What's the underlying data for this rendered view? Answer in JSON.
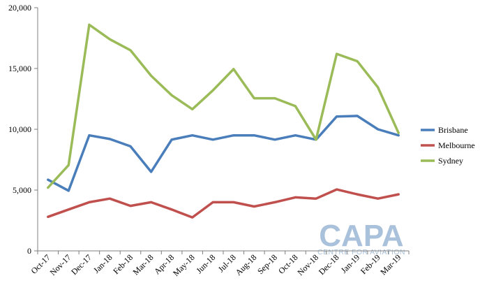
{
  "chart_data": {
    "type": "line",
    "title": "",
    "xlabel": "",
    "ylabel": "",
    "categories": [
      "Oct-17",
      "Nov-17",
      "Dec-17",
      "Jan-18",
      "Feb-18",
      "Mar-18",
      "Apr-18",
      "May-18",
      "Jun-18",
      "Jul-18",
      "Aug-18",
      "Sep-18",
      "Oct-18",
      "Nov-18",
      "Dec-18",
      "Jan-19",
      "Feb-19",
      "Mar-19"
    ],
    "ylim": [
      0,
      20000
    ],
    "yticks": [
      0,
      5000,
      10000,
      15000,
      20000
    ],
    "ytick_labels": [
      "0",
      "5,000",
      "10,000",
      "15,000",
      "20,000"
    ],
    "grid": false,
    "legend_position": "right",
    "series": [
      {
        "name": "Brisbane",
        "color": "#4a7ebb",
        "values": [
          5850,
          4950,
          9500,
          9200,
          8600,
          6500,
          9150,
          9500,
          9150,
          9500,
          9500,
          9150,
          9500,
          9150,
          11050,
          11100,
          10000,
          9500
        ]
      },
      {
        "name": "Melbourne",
        "color": "#c0504d",
        "values": [
          2800,
          3400,
          4000,
          4300,
          3700,
          4000,
          3400,
          2750,
          4000,
          4000,
          3650,
          4000,
          4400,
          4300,
          5050,
          4650,
          4300,
          4650
        ]
      },
      {
        "name": "Sydney",
        "color": "#9bbb59",
        "values": [
          5200,
          7050,
          18600,
          17400,
          16500,
          14400,
          12800,
          11650,
          13200,
          14950,
          12550,
          12550,
          11900,
          9150,
          16200,
          15600,
          13450,
          9700
        ]
      }
    ]
  },
  "watermark": {
    "logo_text": "CAPA",
    "tagline": "CENTRE FOR AVIATION"
  },
  "colors": {
    "axis": "#7f7f7f",
    "watermark": "#a9c1da"
  }
}
